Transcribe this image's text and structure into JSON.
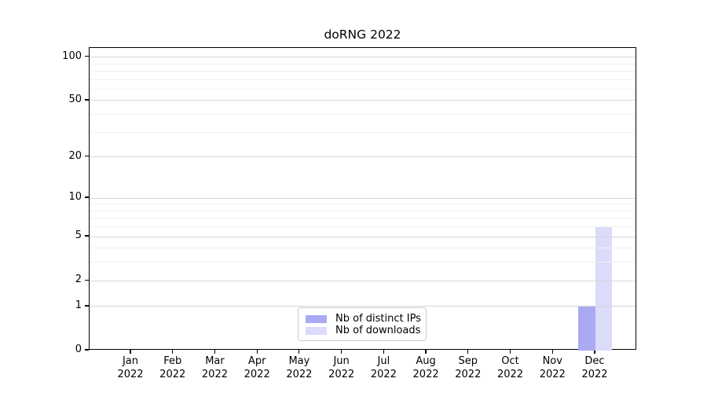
{
  "figure": {
    "background": "#ffffff"
  },
  "chart_data": {
    "type": "bar",
    "title": "doRNG 2022",
    "categories": [
      "Jan 2022",
      "Feb 2022",
      "Mar 2022",
      "Apr 2022",
      "May 2022",
      "Jun 2022",
      "Jul 2022",
      "Aug 2022",
      "Sep 2022",
      "Oct 2022",
      "Nov 2022",
      "Dec 2022"
    ],
    "series": [
      {
        "name": "Nb of distinct IPs",
        "color": "#a9a9f4",
        "values": [
          0,
          0,
          0,
          0,
          0,
          0,
          0,
          0,
          0,
          0,
          0,
          1
        ]
      },
      {
        "name": "Nb of downloads",
        "color": "#dbdbfa",
        "values": [
          0,
          0,
          0,
          0,
          0,
          0,
          0,
          0,
          0,
          0,
          0,
          6
        ]
      }
    ],
    "xlabel": "",
    "ylabel": "",
    "ylim": [
      0,
      100
    ],
    "y_scale": "log1p",
    "y_ticks": {
      "values": [
        0,
        1,
        2,
        5,
        10,
        20,
        50,
        100
      ],
      "labels": [
        "0",
        "1",
        "2",
        "5",
        "10",
        "20",
        "50",
        "100"
      ]
    },
    "y_minor_gridlines": [
      3,
      4,
      6,
      7,
      8,
      9,
      30,
      40,
      60,
      70,
      80,
      90
    ],
    "grid": "on",
    "legend_position": "bottom-center",
    "colors": {
      "frame": "#000000",
      "grid_major": "#d6d6d6",
      "grid_minor": "#f0f0f0",
      "text": "#000000"
    }
  }
}
